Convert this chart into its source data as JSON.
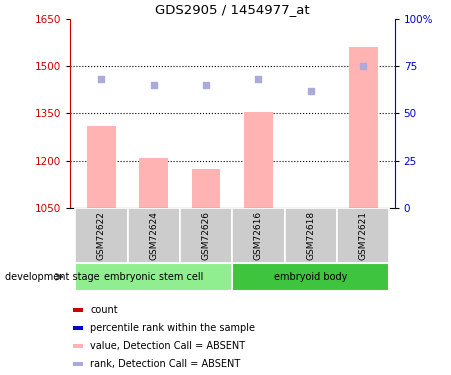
{
  "title": "GDS2905 / 1454977_at",
  "samples": [
    "GSM72622",
    "GSM72624",
    "GSM72626",
    "GSM72616",
    "GSM72618",
    "GSM72621"
  ],
  "bar_values": [
    1310,
    1210,
    1175,
    1355,
    1050,
    1560
  ],
  "dot_values": [
    68,
    65,
    65,
    68,
    62,
    75
  ],
  "ylim_left": [
    1050,
    1650
  ],
  "ylim_right": [
    0,
    100
  ],
  "yticks_left": [
    1050,
    1200,
    1350,
    1500,
    1650
  ],
  "yticks_right": [
    0,
    25,
    50,
    75,
    100
  ],
  "bar_color": "#ffb3b3",
  "dot_color": "#aaaadd",
  "tick_color_left": "#cc0000",
  "tick_color_right": "#0000cc",
  "grid_lines": [
    1200,
    1350,
    1500
  ],
  "group_defs": [
    {
      "label": "embryonic stem cell",
      "start": 0,
      "end": 2,
      "color": "#90ee90"
    },
    {
      "label": "embryoid body",
      "start": 3,
      "end": 5,
      "color": "#3ec43e"
    }
  ],
  "legend_items": [
    {
      "label": "count",
      "color": "#cc0000"
    },
    {
      "label": "percentile rank within the sample",
      "color": "#0000cc"
    },
    {
      "label": "value, Detection Call = ABSENT",
      "color": "#ffb3b3"
    },
    {
      "label": "rank, Detection Call = ABSENT",
      "color": "#aaaadd"
    }
  ],
  "sample_box_color": "#cccccc",
  "fig_width": 4.51,
  "fig_height": 3.75,
  "dpi": 100
}
